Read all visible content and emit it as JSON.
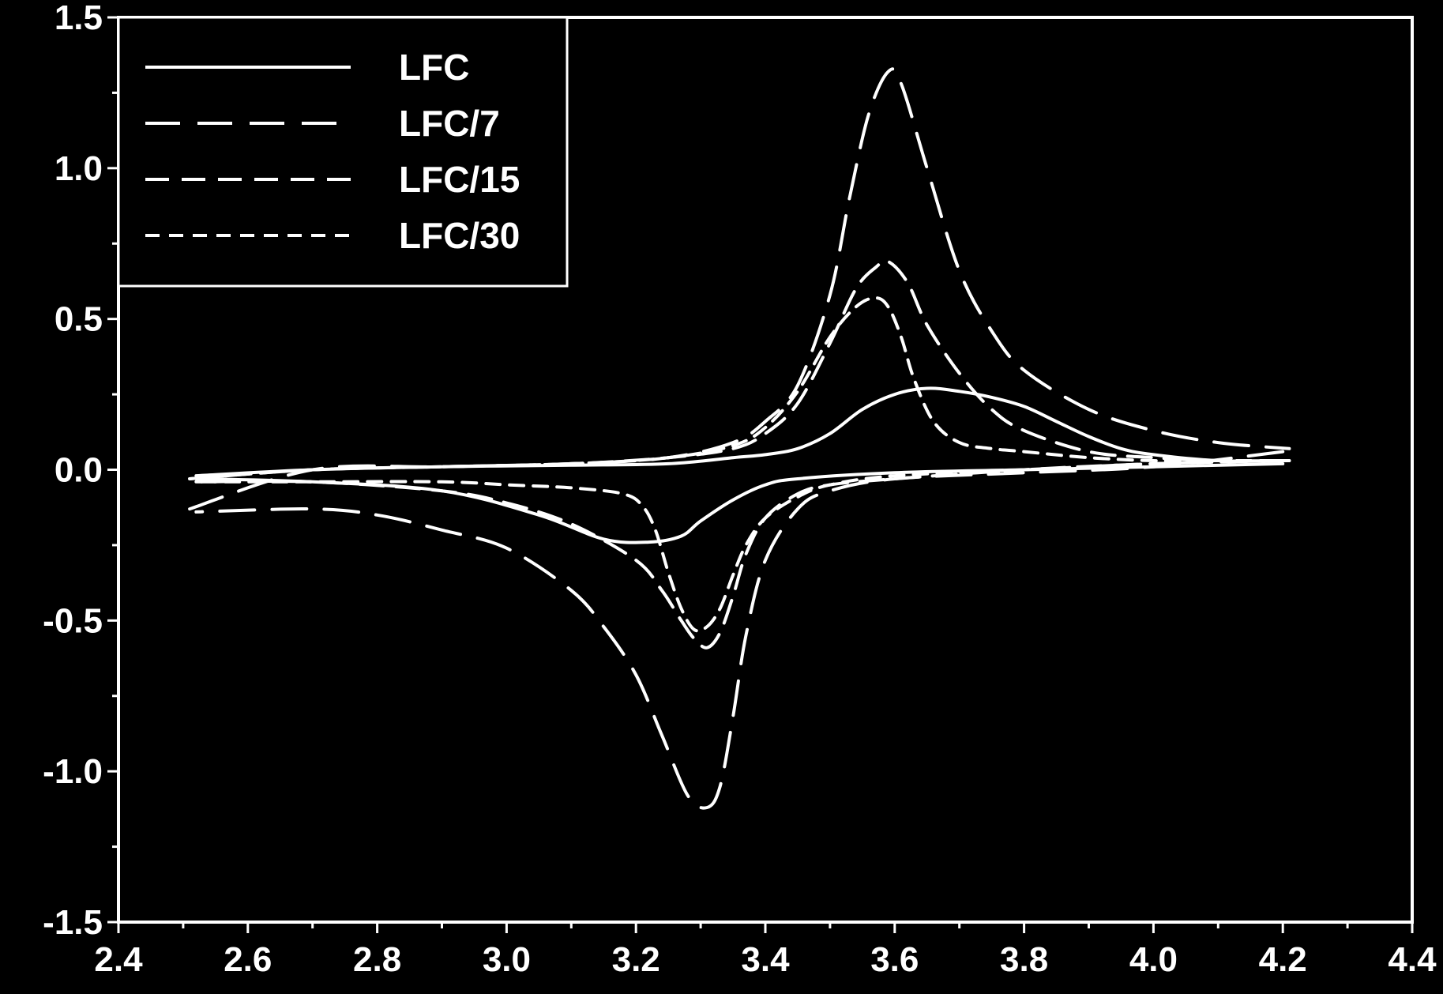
{
  "chart_data": {
    "type": "line",
    "title": "",
    "xlabel": "",
    "ylabel": "",
    "xlim": [
      2.4,
      4.4
    ],
    "ylim": [
      -1.5,
      1.5
    ],
    "x_ticks": [
      2.4,
      2.6,
      2.8,
      3.0,
      3.2,
      3.4,
      3.6,
      3.8,
      4.0,
      4.2,
      4.4
    ],
    "x_tick_labels": [
      "2.4",
      "2.6",
      "2.8",
      "3.0",
      "3.2",
      "3.4",
      "3.6",
      "3.8",
      "4.0",
      "4.2",
      "4.4"
    ],
    "y_ticks": [
      1.5,
      1.0,
      0.5,
      0.0,
      -0.5,
      -1.0,
      -1.5
    ],
    "y_tick_labels": [
      "1.5",
      "1.0",
      "0.5",
      "0.0",
      "-0.5",
      "-1.0",
      "-1.5"
    ],
    "grid": false,
    "legend_position": "top-left",
    "background": "#000000",
    "foreground": "#ffffff",
    "series": [
      {
        "name": "LFC",
        "dash": "solid",
        "anodic": {
          "x": [
            2.52,
            2.7,
            2.9,
            3.1,
            3.25,
            3.35,
            3.4,
            3.45,
            3.5,
            3.55,
            3.6,
            3.65,
            3.7,
            3.75,
            3.8,
            3.85,
            3.9,
            3.95,
            4.0,
            4.1,
            4.2
          ],
          "y": [
            -0.02,
            0.0,
            0.01,
            0.015,
            0.02,
            0.04,
            0.05,
            0.07,
            0.12,
            0.2,
            0.25,
            0.27,
            0.26,
            0.24,
            0.21,
            0.16,
            0.11,
            0.07,
            0.05,
            0.03,
            0.03
          ]
        },
        "cathodic": {
          "x": [
            4.2,
            4.0,
            3.8,
            3.6,
            3.45,
            3.4,
            3.35,
            3.3,
            3.27,
            3.22,
            3.15,
            3.05,
            2.9,
            2.7,
            2.52
          ],
          "y": [
            0.02,
            0.01,
            0.0,
            -0.01,
            -0.03,
            -0.05,
            -0.1,
            -0.17,
            -0.22,
            -0.24,
            -0.23,
            -0.15,
            -0.07,
            -0.04,
            -0.03
          ]
        }
      },
      {
        "name": "LFC/7",
        "dash": "long-dash",
        "anodic": {
          "x": [
            2.51,
            2.7,
            2.9,
            3.1,
            3.25,
            3.35,
            3.4,
            3.45,
            3.5,
            3.53,
            3.56,
            3.59,
            3.61,
            3.65,
            3.7,
            3.75,
            3.8,
            3.9,
            4.0,
            4.1,
            4.21
          ],
          "y": [
            -0.13,
            0.0,
            0.01,
            0.02,
            0.04,
            0.09,
            0.16,
            0.28,
            0.58,
            0.9,
            1.18,
            1.32,
            1.28,
            1.0,
            0.66,
            0.46,
            0.33,
            0.2,
            0.13,
            0.09,
            0.07
          ]
        },
        "cathodic": {
          "x": [
            4.2,
            4.0,
            3.8,
            3.6,
            3.5,
            3.45,
            3.4,
            3.37,
            3.35,
            3.33,
            3.31,
            3.28,
            3.24,
            3.2,
            3.15,
            3.1,
            3.0,
            2.9,
            2.8,
            2.7,
            2.52
          ],
          "y": [
            0.06,
            0.01,
            -0.01,
            -0.03,
            -0.07,
            -0.13,
            -0.3,
            -0.55,
            -0.82,
            -1.05,
            -1.12,
            -1.08,
            -0.88,
            -0.68,
            -0.52,
            -0.4,
            -0.26,
            -0.2,
            -0.15,
            -0.13,
            -0.14
          ]
        }
      },
      {
        "name": "LFC/15",
        "dash": "medium-dash",
        "anodic": {
          "x": [
            2.51,
            2.7,
            2.9,
            3.1,
            3.25,
            3.35,
            3.4,
            3.45,
            3.5,
            3.54,
            3.57,
            3.59,
            3.62,
            3.65,
            3.7,
            3.75,
            3.8,
            3.9,
            4.0,
            4.1,
            4.21
          ],
          "y": [
            -0.03,
            0.0,
            0.01,
            0.02,
            0.04,
            0.07,
            0.12,
            0.22,
            0.42,
            0.6,
            0.67,
            0.69,
            0.62,
            0.48,
            0.32,
            0.2,
            0.13,
            0.06,
            0.04,
            0.03,
            0.03
          ]
        },
        "cathodic": {
          "x": [
            4.2,
            4.0,
            3.8,
            3.6,
            3.5,
            3.45,
            3.4,
            3.37,
            3.35,
            3.33,
            3.31,
            3.29,
            3.27,
            3.24,
            3.2,
            3.1,
            3.0,
            2.9,
            2.7,
            2.52
          ],
          "y": [
            0.03,
            0.02,
            0.0,
            -0.03,
            -0.05,
            -0.08,
            -0.16,
            -0.28,
            -0.42,
            -0.54,
            -0.59,
            -0.56,
            -0.5,
            -0.4,
            -0.3,
            -0.18,
            -0.11,
            -0.07,
            -0.04,
            -0.04
          ]
        }
      },
      {
        "name": "LFC/30",
        "dash": "short-dash",
        "anodic": {
          "x": [
            2.51,
            2.7,
            2.9,
            3.1,
            3.25,
            3.35,
            3.4,
            3.45,
            3.5,
            3.54,
            3.57,
            3.59,
            3.61,
            3.63,
            3.66,
            3.7,
            3.75,
            3.8,
            3.9,
            4.0,
            4.1,
            4.21
          ],
          "y": [
            -0.03,
            0.0,
            0.01,
            0.02,
            0.04,
            0.08,
            0.14,
            0.26,
            0.44,
            0.54,
            0.57,
            0.54,
            0.44,
            0.3,
            0.16,
            0.09,
            0.07,
            0.06,
            0.04,
            0.03,
            0.03,
            0.03
          ]
        },
        "cathodic": {
          "x": [
            4.2,
            4.0,
            3.8,
            3.6,
            3.5,
            3.45,
            3.4,
            3.37,
            3.35,
            3.33,
            3.31,
            3.29,
            3.27,
            3.25,
            3.23,
            3.21,
            3.18,
            3.1,
            3.0,
            2.9,
            2.7,
            2.52
          ],
          "y": [
            0.03,
            0.02,
            0.0,
            -0.02,
            -0.05,
            -0.09,
            -0.16,
            -0.25,
            -0.35,
            -0.46,
            -0.52,
            -0.53,
            -0.46,
            -0.34,
            -0.2,
            -0.12,
            -0.08,
            -0.06,
            -0.05,
            -0.04,
            -0.04,
            -0.04
          ]
        }
      }
    ]
  }
}
